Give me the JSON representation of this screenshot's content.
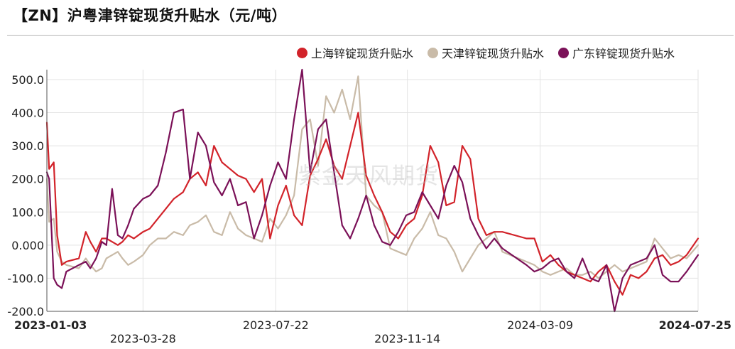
{
  "title": "【ZN】沪粤津锌锭现货升贴水（元/吨）",
  "watermark": "紫金天风期货",
  "chart_data": {
    "type": "line",
    "title": "【ZN】沪粤津锌锭现货升贴水（元/吨）",
    "xlabel": "",
    "ylabel": "",
    "ylim": [
      -200,
      530
    ],
    "yticks": [
      -200,
      -100,
      0,
      100,
      200,
      300,
      400,
      500
    ],
    "ytick_labels": [
      "-200.0",
      "-100.0",
      "0.000",
      "100.0",
      "200.0",
      "300.0",
      "400.0",
      "500.0"
    ],
    "x_range": [
      "2023-01-03",
      "2024-07-25"
    ],
    "xticks": [
      "2023-01-03",
      "2023-03-28",
      "2023-07-22",
      "2023-11-14",
      "2024-03-09",
      "2024-07-25"
    ],
    "xtick_bold": [
      "2023-01-03",
      "2024-07-25"
    ],
    "grid": true,
    "legend_position": "top-right",
    "series": [
      {
        "name": "上海锌锭现货升贴水",
        "color": "#d2232a",
        "x": [
          "2023-01-03",
          "2023-01-05",
          "2023-01-09",
          "2023-01-12",
          "2023-01-16",
          "2023-01-20",
          "2023-01-31",
          "2023-02-06",
          "2023-02-10",
          "2023-02-15",
          "2023-02-20",
          "2023-02-24",
          "2023-03-01",
          "2023-03-06",
          "2023-03-10",
          "2023-03-15",
          "2023-03-20",
          "2023-03-28",
          "2023-04-03",
          "2023-04-10",
          "2023-04-17",
          "2023-04-24",
          "2023-05-02",
          "2023-05-08",
          "2023-05-15",
          "2023-05-22",
          "2023-05-29",
          "2023-06-05",
          "2023-06-12",
          "2023-06-19",
          "2023-06-26",
          "2023-07-03",
          "2023-07-10",
          "2023-07-17",
          "2023-07-24",
          "2023-07-31",
          "2023-08-07",
          "2023-08-14",
          "2023-08-21",
          "2023-08-28",
          "2023-09-04",
          "2023-09-11",
          "2023-09-18",
          "2023-09-25",
          "2023-10-02",
          "2023-10-09",
          "2023-10-16",
          "2023-10-23",
          "2023-10-30",
          "2023-11-06",
          "2023-11-13",
          "2023-11-20",
          "2023-11-27",
          "2023-12-04",
          "2023-12-11",
          "2023-12-18",
          "2023-12-25",
          "2024-01-01",
          "2024-01-08",
          "2024-01-15",
          "2024-01-22",
          "2024-01-29",
          "2024-02-05",
          "2024-02-26",
          "2024-03-04",
          "2024-03-11",
          "2024-03-18",
          "2024-03-25",
          "2024-04-01",
          "2024-04-08",
          "2024-04-15",
          "2024-04-22",
          "2024-04-29",
          "2024-05-06",
          "2024-05-13",
          "2024-05-20",
          "2024-05-27",
          "2024-06-03",
          "2024-06-10",
          "2024-06-17",
          "2024-06-24",
          "2024-07-01",
          "2024-07-08",
          "2024-07-15",
          "2024-07-25"
        ],
        "values": [
          370,
          230,
          250,
          30,
          -60,
          -50,
          -40,
          40,
          10,
          -20,
          20,
          20,
          10,
          0,
          10,
          30,
          20,
          40,
          50,
          80,
          110,
          140,
          160,
          200,
          220,
          180,
          300,
          250,
          230,
          210,
          200,
          160,
          200,
          20,
          120,
          180,
          90,
          60,
          210,
          260,
          320,
          240,
          200,
          300,
          400,
          210,
          150,
          100,
          40,
          20,
          60,
          80,
          150,
          300,
          250,
          120,
          130,
          300,
          260,
          80,
          30,
          40,
          40,
          20,
          20,
          -50,
          -30,
          -60,
          -80,
          -90,
          -100,
          -110,
          -80,
          -60,
          -110,
          -150,
          -90,
          -100,
          -80,
          -40,
          -30,
          -60,
          -50,
          -30,
          20
        ]
      },
      {
        "name": "天津锌锭现货升贴水",
        "color": "#c9bba8",
        "x": [
          "2023-01-03",
          "2023-01-05",
          "2023-01-09",
          "2023-01-12",
          "2023-01-16",
          "2023-01-20",
          "2023-01-31",
          "2023-02-06",
          "2023-02-10",
          "2023-02-15",
          "2023-02-20",
          "2023-02-24",
          "2023-03-01",
          "2023-03-06",
          "2023-03-10",
          "2023-03-15",
          "2023-03-20",
          "2023-03-28",
          "2023-04-03",
          "2023-04-10",
          "2023-04-17",
          "2023-04-24",
          "2023-05-02",
          "2023-05-08",
          "2023-05-15",
          "2023-05-22",
          "2023-05-29",
          "2023-06-05",
          "2023-06-12",
          "2023-06-19",
          "2023-06-26",
          "2023-07-03",
          "2023-07-10",
          "2023-07-17",
          "2023-07-24",
          "2023-07-31",
          "2023-08-07",
          "2023-08-14",
          "2023-08-21",
          "2023-08-28",
          "2023-09-04",
          "2023-09-11",
          "2023-09-18",
          "2023-09-25",
          "2023-10-02",
          "2023-10-09",
          "2023-10-16",
          "2023-10-23",
          "2023-10-30",
          "2023-11-06",
          "2023-11-13",
          "2023-11-20",
          "2023-11-27",
          "2023-12-04",
          "2023-12-11",
          "2023-12-18",
          "2023-12-25",
          "2024-01-01",
          "2024-01-08",
          "2024-01-15",
          "2024-01-22",
          "2024-01-29",
          "2024-02-05",
          "2024-02-26",
          "2024-03-04",
          "2024-03-11",
          "2024-03-18",
          "2024-03-25",
          "2024-04-01",
          "2024-04-08",
          "2024-04-15",
          "2024-04-22",
          "2024-04-29",
          "2024-05-06",
          "2024-05-13",
          "2024-05-20",
          "2024-05-27",
          "2024-06-03",
          "2024-06-10",
          "2024-06-17",
          "2024-06-24",
          "2024-07-01",
          "2024-07-08",
          "2024-07-15",
          "2024-07-25"
        ],
        "values": [
          200,
          70,
          80,
          -20,
          -50,
          -60,
          -70,
          -40,
          -60,
          -80,
          -70,
          -40,
          -30,
          -20,
          -40,
          -60,
          -50,
          -30,
          0,
          20,
          20,
          40,
          30,
          60,
          70,
          90,
          40,
          30,
          100,
          50,
          30,
          20,
          10,
          80,
          50,
          90,
          150,
          350,
          380,
          240,
          450,
          400,
          470,
          380,
          510,
          150,
          120,
          100,
          -10,
          -20,
          -30,
          20,
          50,
          100,
          30,
          20,
          -20,
          -80,
          -40,
          0,
          20,
          40,
          -20,
          -50,
          -60,
          -80,
          -90,
          -80,
          -70,
          -90,
          -90,
          -80,
          -100,
          -80,
          -60,
          -80,
          -70,
          -60,
          -50,
          20,
          -10,
          -40,
          -30,
          -40,
          0
        ]
      },
      {
        "name": "广东锌锭现货升贴水",
        "color": "#7b1158",
        "x": [
          "2023-01-03",
          "2023-01-05",
          "2023-01-09",
          "2023-01-12",
          "2023-01-16",
          "2023-01-20",
          "2023-01-31",
          "2023-02-06",
          "2023-02-10",
          "2023-02-15",
          "2023-02-20",
          "2023-02-24",
          "2023-03-01",
          "2023-03-06",
          "2023-03-10",
          "2023-03-15",
          "2023-03-20",
          "2023-03-28",
          "2023-04-03",
          "2023-04-10",
          "2023-04-17",
          "2023-04-24",
          "2023-05-02",
          "2023-05-08",
          "2023-05-15",
          "2023-05-22",
          "2023-05-29",
          "2023-06-05",
          "2023-06-12",
          "2023-06-19",
          "2023-06-26",
          "2023-07-03",
          "2023-07-10",
          "2023-07-17",
          "2023-07-24",
          "2023-07-31",
          "2023-08-07",
          "2023-08-14",
          "2023-08-21",
          "2023-08-28",
          "2023-09-04",
          "2023-09-11",
          "2023-09-18",
          "2023-09-25",
          "2023-10-02",
          "2023-10-09",
          "2023-10-16",
          "2023-10-23",
          "2023-10-30",
          "2023-11-06",
          "2023-11-13",
          "2023-11-20",
          "2023-11-27",
          "2023-12-04",
          "2023-12-11",
          "2023-12-18",
          "2023-12-25",
          "2024-01-01",
          "2024-01-08",
          "2024-01-15",
          "2024-01-22",
          "2024-01-29",
          "2024-02-05",
          "2024-02-26",
          "2024-03-04",
          "2024-03-11",
          "2024-03-18",
          "2024-03-25",
          "2024-04-01",
          "2024-04-08",
          "2024-04-15",
          "2024-04-22",
          "2024-04-29",
          "2024-05-06",
          "2024-05-13",
          "2024-05-20",
          "2024-05-27",
          "2024-06-03",
          "2024-06-10",
          "2024-06-17",
          "2024-06-24",
          "2024-07-01",
          "2024-07-08",
          "2024-07-15",
          "2024-07-25"
        ],
        "values": [
          220,
          200,
          -100,
          -120,
          -130,
          -80,
          -60,
          -50,
          -70,
          -40,
          10,
          0,
          170,
          30,
          20,
          60,
          110,
          140,
          150,
          180,
          280,
          400,
          410,
          200,
          340,
          300,
          190,
          150,
          200,
          120,
          130,
          20,
          90,
          180,
          250,
          200,
          380,
          530,
          220,
          350,
          380,
          220,
          60,
          20,
          80,
          150,
          60,
          10,
          0,
          40,
          90,
          100,
          160,
          120,
          80,
          180,
          240,
          190,
          80,
          30,
          -10,
          20,
          -10,
          -60,
          -80,
          -70,
          -50,
          -40,
          -80,
          -100,
          -40,
          -100,
          -110,
          -60,
          -200,
          -100,
          -60,
          -50,
          -40,
          0,
          -90,
          -110,
          -110,
          -80,
          -30
        ]
      }
    ]
  }
}
